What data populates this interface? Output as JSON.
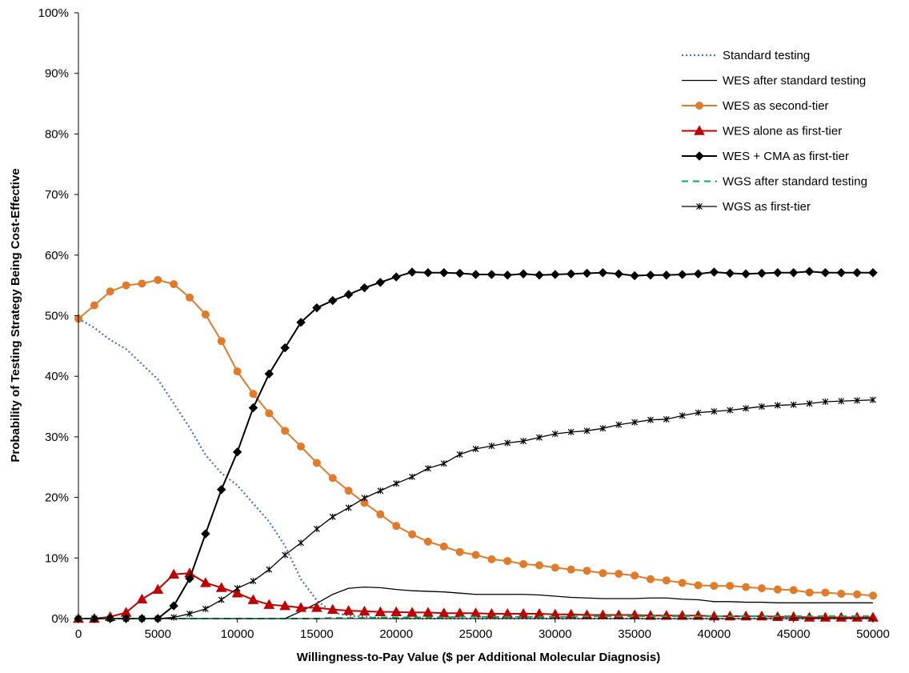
{
  "chart_data": {
    "type": "line",
    "title": "",
    "xlabel": "Willingness-to-Pay Value ($ per Additional Molecular Diagnosis)",
    "ylabel": "Probability of Testing Strategy Being Cost-Effective",
    "xlim": [
      0,
      50000
    ],
    "ylim": [
      0,
      100
    ],
    "x_ticks": [
      0,
      5000,
      10000,
      15000,
      20000,
      25000,
      30000,
      35000,
      40000,
      45000,
      50000
    ],
    "y_ticks": [
      0,
      10,
      20,
      30,
      40,
      50,
      60,
      70,
      80,
      90,
      100
    ],
    "y_tick_labels": [
      "0%",
      "10%",
      "20%",
      "30%",
      "40%",
      "50%",
      "60%",
      "70%",
      "80%",
      "90%",
      "100%"
    ],
    "grid": false,
    "legend_position": "top-right",
    "x": [
      0,
      1000,
      2000,
      3000,
      4000,
      5000,
      6000,
      7000,
      8000,
      9000,
      10000,
      11000,
      12000,
      13000,
      14000,
      15000,
      16000,
      17000,
      18000,
      19000,
      20000,
      21000,
      22000,
      23000,
      24000,
      25000,
      26000,
      27000,
      28000,
      29000,
      30000,
      31000,
      32000,
      33000,
      34000,
      35000,
      36000,
      37000,
      38000,
      39000,
      40000,
      41000,
      42000,
      43000,
      44000,
      45000,
      46000,
      47000,
      48000,
      49000,
      50000
    ],
    "series": [
      {
        "name": "Standard testing",
        "color": "#4472c4",
        "style": "dotted",
        "marker": "none",
        "values": [
          49.5,
          48,
          46,
          44.5,
          42,
          39.5,
          35.5,
          31.5,
          27,
          24,
          22,
          19,
          16,
          12,
          6.5,
          3,
          1,
          0.5,
          0.3,
          0.1,
          0,
          0,
          0,
          0,
          0,
          0,
          0,
          0,
          0,
          0,
          0,
          0,
          0,
          0,
          0,
          0,
          0,
          0,
          0,
          0,
          0,
          0,
          0,
          0,
          0,
          0,
          0,
          0,
          0,
          0,
          0
        ]
      },
      {
        "name": "WES after standard testing",
        "color": "#000000",
        "style": "solid-thin",
        "marker": "none",
        "values": [
          0,
          0,
          0,
          0,
          0,
          0,
          0,
          0,
          0,
          0,
          0,
          0,
          0,
          0,
          1.2,
          2.5,
          4,
          5,
          5.2,
          5.1,
          4.8,
          4.6,
          4.5,
          4.4,
          4.2,
          4,
          4,
          4,
          4,
          3.9,
          3.7,
          3.5,
          3.4,
          3.3,
          3.3,
          3.3,
          3.4,
          3.4,
          3.2,
          3.1,
          2.8,
          2.8,
          2.7,
          2.7,
          2.6,
          2.6,
          2.6,
          2.6,
          2.6,
          2.6,
          2.6
        ]
      },
      {
        "name": "WES as second-tier",
        "color": "#e07b2a",
        "style": "solid",
        "marker": "circle",
        "values": [
          49.5,
          51.7,
          54,
          55,
          55.3,
          55.9,
          55.2,
          53,
          50.2,
          45.8,
          40.8,
          37.1,
          33.9,
          31,
          28.4,
          25.7,
          23.2,
          21.1,
          19.1,
          17.2,
          15.3,
          13.9,
          12.7,
          11.9,
          11,
          10.5,
          9.8,
          9.5,
          9,
          8.8,
          8.4,
          8.1,
          7.9,
          7.5,
          7.4,
          7.1,
          6.5,
          6.3,
          5.9,
          5.5,
          5.4,
          5.4,
          5.2,
          5,
          4.8,
          4.7,
          4.3,
          4.3,
          4.1,
          4,
          3.8
        ]
      },
      {
        "name": "WES alone as first-tier",
        "color": "#c00000",
        "style": "solid",
        "marker": "triangle",
        "values": [
          0,
          0,
          0.3,
          1,
          3.2,
          4.8,
          7.3,
          7.5,
          5.9,
          5.1,
          4.2,
          3.1,
          2.3,
          2.1,
          1.8,
          1.8,
          1.5,
          1.3,
          1.2,
          1.1,
          1.1,
          1,
          1,
          0.9,
          0.9,
          0.9,
          0.8,
          0.8,
          0.8,
          0.8,
          0.7,
          0.7,
          0.6,
          0.6,
          0.6,
          0.6,
          0.5,
          0.5,
          0.5,
          0.5,
          0.4,
          0.4,
          0.4,
          0.4,
          0.3,
          0.3,
          0.2,
          0.2,
          0.2,
          0.2,
          0.2
        ]
      },
      {
        "name": "WES + CMA as first-tier",
        "color": "#000000",
        "style": "solid",
        "marker": "diamond",
        "values": [
          0,
          0,
          0,
          0,
          0,
          0,
          2.1,
          6.6,
          14,
          21.3,
          27.5,
          34.8,
          40.4,
          44.7,
          48.9,
          51.3,
          52.5,
          53.5,
          54.6,
          55.5,
          56.4,
          57.2,
          57.1,
          57.1,
          57,
          56.8,
          56.8,
          56.7,
          56.9,
          56.7,
          56.8,
          56.9,
          57,
          57.1,
          56.9,
          56.6,
          56.7,
          56.7,
          56.8,
          56.9,
          57.2,
          57,
          56.9,
          57,
          57.1,
          57.1,
          57.3,
          57.1,
          57.1,
          57.1,
          57.1
        ]
      },
      {
        "name": "WGS after standard testing",
        "color": "#00b050",
        "style": "dashed",
        "marker": "none",
        "values": [
          0,
          0,
          0,
          0,
          0,
          0,
          0,
          0,
          0,
          0,
          0,
          0,
          0,
          0,
          0,
          0,
          0.1,
          0.1,
          0.1,
          0.2,
          0.2,
          0.2,
          0.2,
          0.2,
          0.3,
          0.3,
          0.3,
          0.3,
          0.3,
          0.3,
          0.3,
          0.3,
          0.4,
          0.4,
          0.4,
          0.4,
          0.4,
          0.4,
          0.4,
          0.4,
          0.4,
          0.4,
          0.4,
          0.4,
          0.4,
          0.4,
          0.4,
          0.4,
          0.4,
          0.4,
          0.4
        ]
      },
      {
        "name": "WGS as first-tier",
        "color": "#000000",
        "style": "solid-thin",
        "marker": "star",
        "values": [
          0,
          0,
          0,
          0,
          0,
          0,
          0.2,
          0.8,
          1.6,
          3.1,
          5,
          6.2,
          8.1,
          10.5,
          12.5,
          14.8,
          16.8,
          18.3,
          19.9,
          21.1,
          22.3,
          23.4,
          24.8,
          25.6,
          27.1,
          28,
          28.5,
          29,
          29.3,
          29.9,
          30.5,
          30.8,
          31,
          31.4,
          32,
          32.4,
          32.8,
          32.9,
          33.5,
          34,
          34.2,
          34.4,
          34.7,
          35,
          35.2,
          35.3,
          35.5,
          35.8,
          35.9,
          36,
          36.1
        ]
      }
    ]
  }
}
